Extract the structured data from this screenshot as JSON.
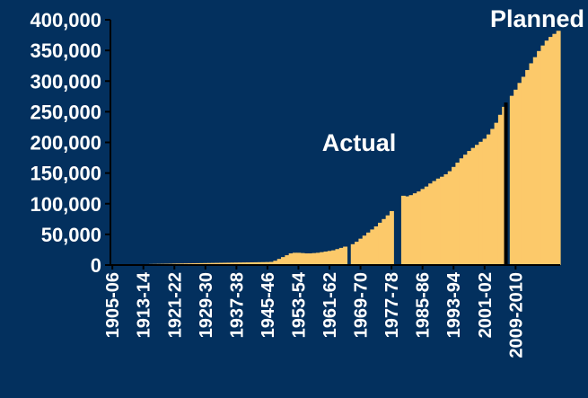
{
  "colors": {
    "background": "#03305E",
    "bar": "#FCC96A",
    "axis": "#000000",
    "text": "#FFFFFF"
  },
  "chart_data": {
    "type": "bar",
    "title": "",
    "xlabel": "",
    "ylabel": "",
    "ylim": [
      0,
      400000
    ],
    "grid": false,
    "legend": "none",
    "y_ticks": [
      "0",
      "50,000",
      "100,000",
      "150,000",
      "200,000",
      "250,000",
      "300,000",
      "350,000",
      "400,000"
    ],
    "y_tick_values": [
      0,
      50000,
      100000,
      150000,
      200000,
      250000,
      300000,
      350000,
      400000
    ],
    "x_tick_labels": [
      "1905-06",
      "1913-14",
      "1921-22",
      "1929-30",
      "1937-38",
      "1945-46",
      "1953-54",
      "1961-62",
      "1969-70",
      "1977-78",
      "1985-86",
      "1993-94",
      "2001-02",
      "2009-2010"
    ],
    "x_tick_positions": [
      0,
      8,
      16,
      24,
      32,
      40,
      48,
      56,
      64,
      72,
      80,
      88,
      96,
      104
    ],
    "n_bars": 116,
    "series": [
      {
        "values": [
          600,
          700,
          800,
          900,
          1000,
          1100,
          1200,
          1300,
          1400,
          1500,
          1700,
          1800,
          1900,
          2000,
          2100,
          2200,
          2400,
          2500,
          2600,
          2700,
          2800,
          2900,
          3000,
          3100,
          3200,
          3300,
          3400,
          3500,
          3600,
          3700,
          3800,
          3900,
          4000,
          4100,
          4200,
          4300,
          4400,
          4500,
          4600,
          4700,
          4800,
          5100,
          7000,
          10000,
          13000,
          16000,
          19000,
          20000,
          20000,
          19500,
          19000,
          19000,
          19500,
          20000,
          21000,
          22000,
          23000,
          24000,
          26000,
          28000,
          30000,
          0,
          34000,
          38000,
          43000,
          48000,
          53000,
          58000,
          63000,
          69000,
          75000,
          81000,
          88000,
          0,
          0,
          113000,
          112000,
          114000,
          117000,
          120000,
          124000,
          128000,
          133000,
          137000,
          141000,
          144000,
          148000,
          153000,
          160000,
          167000,
          174000,
          180000,
          186000,
          191000,
          196000,
          201000,
          206000,
          213000,
          222000,
          232000,
          245000,
          258000,
          0,
          276000,
          286000,
          297000,
          307000,
          318000,
          329000,
          339000,
          349000,
          358000,
          366000,
          372000,
          377000,
          382000
        ]
      }
    ],
    "annotations": [
      {
        "label": "Actual",
        "x": 56,
        "y": 200000
      },
      {
        "label": "Planned",
        "x": 101,
        "y": 400000
      }
    ],
    "separator_after_index": 101
  }
}
